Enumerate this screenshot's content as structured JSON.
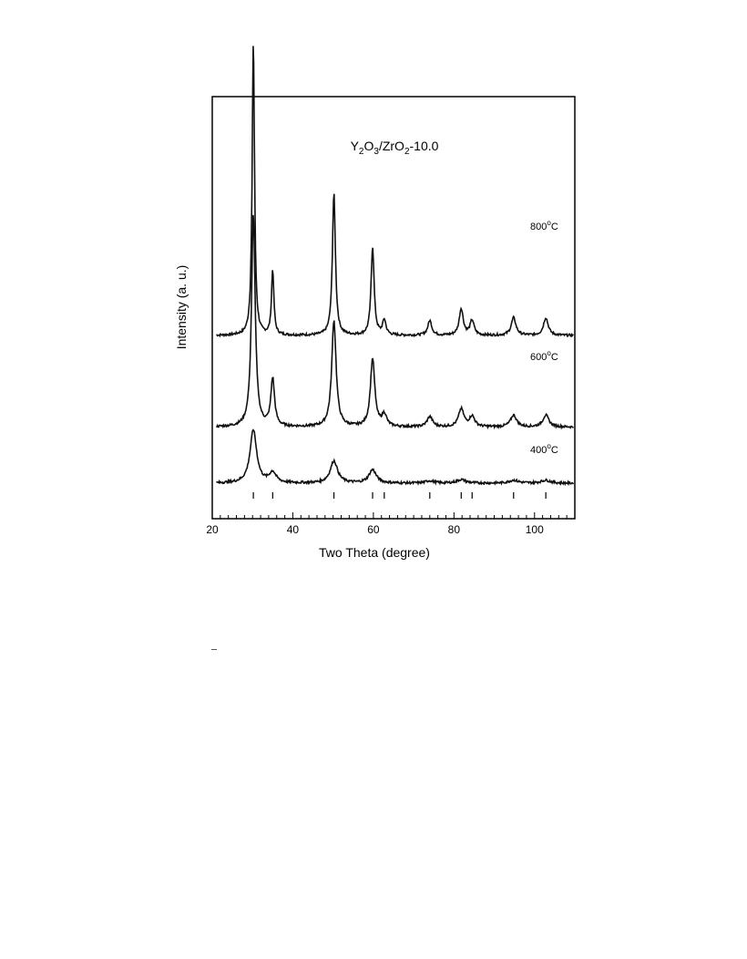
{
  "chart_data": {
    "type": "line",
    "title_main": "Y",
    "title_parts": [
      {
        "text": "Y",
        "sub": false
      },
      {
        "text": "2",
        "sub": true
      },
      {
        "text": "O",
        "sub": false
      },
      {
        "text": "3",
        "sub": true
      },
      {
        "text": "/ZrO",
        "sub": false
      },
      {
        "text": "2",
        "sub": true
      },
      {
        "text": "-10.0",
        "sub": false
      }
    ],
    "xlabel": "Two Theta (degree)",
    "ylabel": "Intensity (a. u.)",
    "xlim": [
      20,
      110
    ],
    "x_ticks": [
      20,
      40,
      60,
      80,
      100
    ],
    "x_tick_labels": [
      "20",
      "40",
      "60",
      "80",
      "100"
    ],
    "y_ticks_shown": false,
    "reference_lines": [
      30.2,
      35.0,
      50.2,
      59.8,
      62.7,
      74.0,
      81.8,
      84.5,
      94.8,
      102.8
    ],
    "series": [
      {
        "name": "800",
        "label_main": "800",
        "label_sup": "o",
        "label_unit": "C",
        "baseline": 0.62,
        "peaks": [
          {
            "x": 30.2,
            "h": 1.0,
            "w": 0.35
          },
          {
            "x": 35.0,
            "h": 0.22,
            "w": 0.35
          },
          {
            "x": 50.2,
            "h": 0.48,
            "w": 0.45
          },
          {
            "x": 59.8,
            "h": 0.3,
            "w": 0.45
          },
          {
            "x": 62.7,
            "h": 0.05,
            "w": 0.5
          },
          {
            "x": 74.0,
            "h": 0.05,
            "w": 0.6
          },
          {
            "x": 81.8,
            "h": 0.09,
            "w": 0.6
          },
          {
            "x": 84.5,
            "h": 0.05,
            "w": 0.6
          },
          {
            "x": 94.8,
            "h": 0.06,
            "w": 0.7
          },
          {
            "x": 102.8,
            "h": 0.06,
            "w": 0.7
          }
        ]
      },
      {
        "name": "600",
        "label_main": "600",
        "label_sup": "o",
        "label_unit": "C",
        "baseline": 0.31,
        "peaks": [
          {
            "x": 30.2,
            "h": 0.72,
            "w": 0.55
          },
          {
            "x": 35.0,
            "h": 0.16,
            "w": 0.55
          },
          {
            "x": 50.2,
            "h": 0.36,
            "w": 0.65
          },
          {
            "x": 59.8,
            "h": 0.23,
            "w": 0.65
          },
          {
            "x": 62.7,
            "h": 0.04,
            "w": 0.7
          },
          {
            "x": 74.0,
            "h": 0.035,
            "w": 0.8
          },
          {
            "x": 81.8,
            "h": 0.06,
            "w": 0.8
          },
          {
            "x": 84.5,
            "h": 0.035,
            "w": 0.8
          },
          {
            "x": 94.8,
            "h": 0.04,
            "w": 0.9
          },
          {
            "x": 102.8,
            "h": 0.04,
            "w": 0.9
          }
        ]
      },
      {
        "name": "400",
        "label_main": "400",
        "label_sup": "o",
        "label_unit": "C",
        "baseline": 0.12,
        "peaks": [
          {
            "x": 30.2,
            "h": 0.18,
            "w": 1.0
          },
          {
            "x": 35.0,
            "h": 0.035,
            "w": 1.0
          },
          {
            "x": 50.2,
            "h": 0.075,
            "w": 1.1
          },
          {
            "x": 59.8,
            "h": 0.045,
            "w": 1.1
          },
          {
            "x": 74.0,
            "h": 0.008,
            "w": 1.2
          },
          {
            "x": 81.8,
            "h": 0.012,
            "w": 1.3
          },
          {
            "x": 94.8,
            "h": 0.01,
            "w": 1.4
          },
          {
            "x": 102.8,
            "h": 0.01,
            "w": 1.4
          }
        ]
      }
    ],
    "line_color": "#111111",
    "grid": false
  }
}
